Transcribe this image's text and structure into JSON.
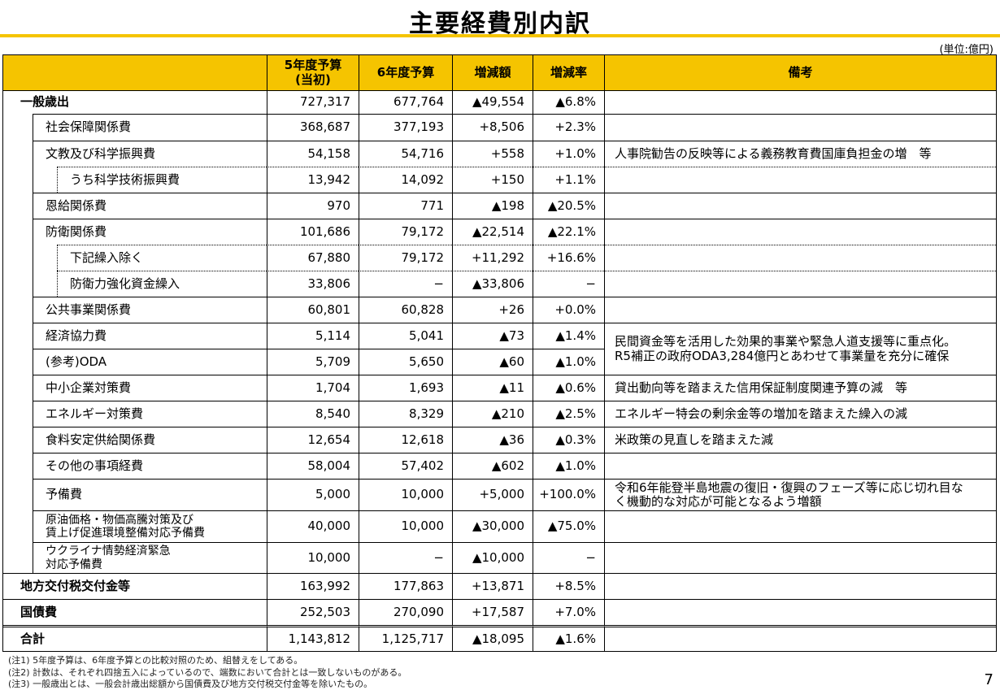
{
  "header": {
    "title": "主要経費別内訳",
    "unit": "(単位:億円)"
  },
  "table": {
    "columns": [
      "5年度予算\n(当初)",
      "6年度予算",
      "増減額",
      "増減率",
      "備考"
    ],
    "rows": [
      {
        "label": "一般歳出",
        "values": [
          "727,317",
          "677,764",
          "▲49,554",
          "▲6.8%"
        ]
      },
      {
        "label": "社会保障関係費",
        "values": [
          "368,687",
          "377,193",
          "+8,506",
          "+2.3%"
        ]
      },
      {
        "label": "文教及び科学振興費",
        "values": [
          "54,158",
          "54,716",
          "+558",
          "+1.0%"
        ],
        "remark": "人事院勧告の反映等による義務教育費国庫負担金の増　等"
      },
      {
        "label": "うち科学技術振興費",
        "values": [
          "13,942",
          "14,092",
          "+150",
          "+1.1%"
        ]
      },
      {
        "label": "恩給関係費",
        "values": [
          "970",
          "771",
          "▲198",
          "▲20.5%"
        ]
      },
      {
        "label": "防衛関係費",
        "values": [
          "101,686",
          "79,172",
          "▲22,514",
          "▲22.1%"
        ]
      },
      {
        "label": "下記繰入除く",
        "values": [
          "67,880",
          "79,172",
          "+11,292",
          "+16.6%"
        ]
      },
      {
        "label": "防衛力強化資金繰入",
        "values": [
          "33,806",
          "−",
          "▲33,806",
          "−"
        ]
      },
      {
        "label": "公共事業関係費",
        "values": [
          "60,801",
          "60,828",
          "+26",
          "+0.0%"
        ]
      },
      {
        "label": "経済協力費",
        "values": [
          "5,114",
          "5,041",
          "▲73",
          "▲1.4%"
        ],
        "remark": "民間資金等を活用した効果的事業や緊急人道支援等に重点化。\nR5補正の政府ODA3,284億円とあわせて事業量を充分に確保"
      },
      {
        "label": "(参考)ODA",
        "values": [
          "5,709",
          "5,650",
          "▲60",
          "▲1.0%"
        ]
      },
      {
        "label": "中小企業対策費",
        "values": [
          "1,704",
          "1,693",
          "▲11",
          "▲0.6%"
        ],
        "remark": "貸出動向等を踏まえた信用保証制度関連予算の減　等"
      },
      {
        "label": "エネルギー対策費",
        "values": [
          "8,540",
          "8,329",
          "▲210",
          "▲2.5%"
        ],
        "remark": "エネルギー特会の剰余金等の増加を踏まえた繰入の減"
      },
      {
        "label": "食料安定供給関係費",
        "values": [
          "12,654",
          "12,618",
          "▲36",
          "▲0.3%"
        ],
        "remark": "米政策の見直しを踏まえた減"
      },
      {
        "label": "その他の事項経費",
        "values": [
          "58,004",
          "57,402",
          "▲602",
          "▲1.0%"
        ]
      },
      {
        "label": "予備費",
        "values": [
          "5,000",
          "10,000",
          "+5,000",
          "+100.0%"
        ],
        "remark": "令和6年能登半島地震の復旧・復興のフェーズ等に応じ切れ目な\nく機動的な対応が可能となるよう増額"
      },
      {
        "label": "原油価格・物価高騰対策及び\n賃上げ促進環境整備対応予備費",
        "values": [
          "40,000",
          "10,000",
          "▲30,000",
          "▲75.0%"
        ]
      },
      {
        "label": "ウクライナ情勢経済緊急\n対応予備費",
        "values": [
          "10,000",
          "−",
          "▲10,000",
          "−"
        ]
      },
      {
        "label": "地方交付税交付金等",
        "values": [
          "163,992",
          "177,863",
          "+13,871",
          "+8.5%"
        ]
      },
      {
        "label": "国債費",
        "values": [
          "252,503",
          "270,090",
          "+17,587",
          "+7.0%"
        ]
      },
      {
        "label": "合計",
        "values": [
          "1,143,812",
          "1,125,717",
          "▲18,095",
          "▲1.6%"
        ]
      }
    ]
  },
  "notes": [
    "(注1) 5年度予算は、6年度予算との比較対照のため、組替えをしてある。",
    "(注2) 計数は、それぞれ四捨五入によっているので、端数において合計とは一致しないものがある。",
    "(注3) 一般歳出とは、一般会計歳出総額から国債費及び地方交付税交付金等を除いたもの。"
  ],
  "page_number": "7"
}
